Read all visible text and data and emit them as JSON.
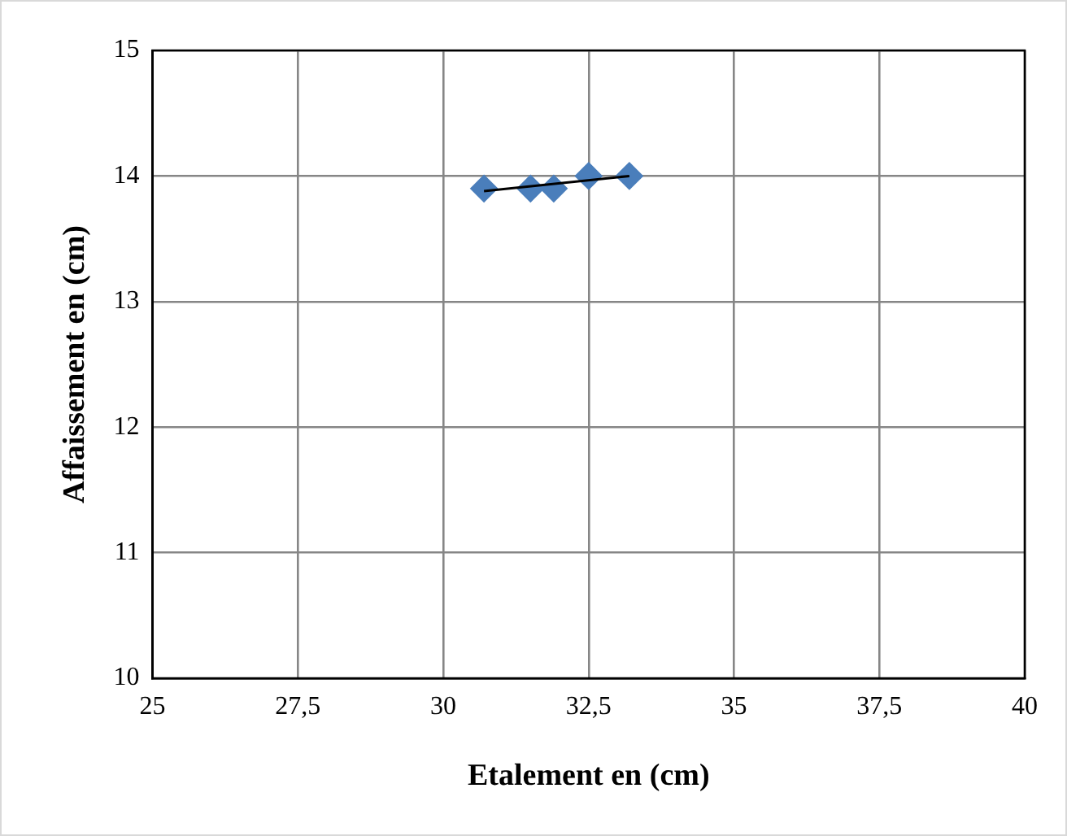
{
  "chart_data": {
    "type": "scatter",
    "xlabel": "Etalement en (cm)",
    "ylabel": "Affaissement en (cm)",
    "xlim": [
      25,
      40
    ],
    "xticks": [
      25,
      {
        "value": 27.5,
        "label": "27,5"
      },
      30,
      {
        "value": 32.5,
        "label": "32,5"
      },
      35,
      {
        "value": 37.5,
        "label": "37,5"
      },
      40
    ],
    "ylim": [
      10,
      15
    ],
    "yticks": [
      10,
      11,
      12,
      13,
      14,
      15
    ],
    "grid": true,
    "marker": "diamond",
    "series": [
      {
        "color": "#4a7ebb",
        "x": [
          30.7,
          31.5,
          31.9,
          32.5,
          33.2
        ],
        "values": [
          13.9,
          13.9,
          13.9,
          14.0,
          14.0
        ]
      },
      {
        "type": "line",
        "color": "#000000",
        "x": [
          30.7,
          33.2
        ],
        "values": [
          13.88,
          14.0
        ],
        "marker": "none"
      }
    ]
  }
}
